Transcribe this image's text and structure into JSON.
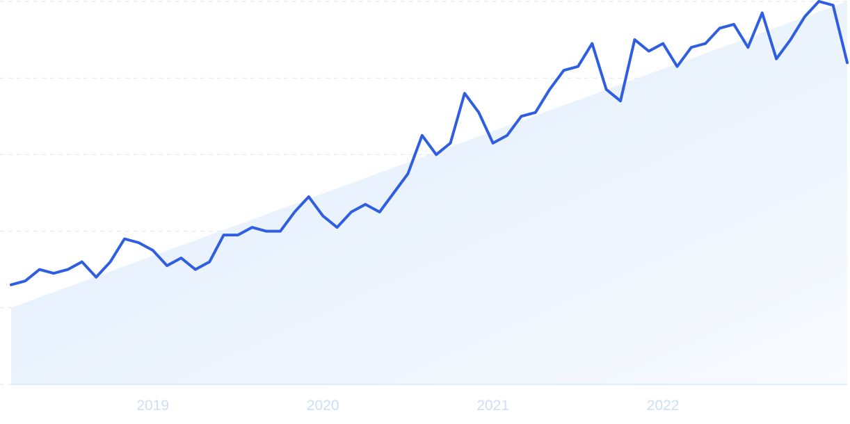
{
  "chart_data": {
    "type": "line",
    "title": "",
    "xlabel": "",
    "ylabel": "",
    "x_ticks": [
      "2019",
      "2020",
      "2021",
      "2022"
    ],
    "grid": true,
    "legend": "none",
    "ylim": [
      0,
      100
    ],
    "colors": {
      "line": "#2f5fe0",
      "trend_fill_start": "#deebfb",
      "trend_fill_end": "#f8fbff",
      "tick": "#cddff6",
      "grid": "#dbe6f3"
    },
    "x": [
      "2018-03",
      "2018-04",
      "2018-05",
      "2018-06",
      "2018-07",
      "2018-08",
      "2018-09",
      "2018-10",
      "2018-11",
      "2018-12",
      "2019-01",
      "2019-02",
      "2019-03",
      "2019-04",
      "2019-05",
      "2019-06",
      "2019-07",
      "2019-08",
      "2019-09",
      "2019-10",
      "2019-11",
      "2019-12",
      "2020-01",
      "2020-02",
      "2020-03",
      "2020-04",
      "2020-05",
      "2020-06",
      "2020-07",
      "2020-08",
      "2020-09",
      "2020-10",
      "2020-11",
      "2020-12",
      "2021-01",
      "2021-02",
      "2021-03",
      "2021-04",
      "2021-05",
      "2021-06",
      "2021-07",
      "2021-08",
      "2021-09",
      "2021-10",
      "2021-11",
      "2021-12",
      "2022-01",
      "2022-02",
      "2022-03",
      "2022-04",
      "2022-05",
      "2022-06",
      "2022-07",
      "2022-08",
      "2022-09",
      "2022-10",
      "2022-11",
      "2022-12",
      "2023-01",
      "2023-02"
    ],
    "series": [
      {
        "values": [
          26,
          27,
          30,
          29,
          30,
          32,
          28,
          32,
          38,
          37,
          35,
          31,
          33,
          30,
          32,
          39,
          39,
          41,
          40,
          40,
          45,
          49,
          44,
          41,
          45,
          47,
          45,
          50,
          55,
          65,
          60,
          63,
          76,
          71,
          63,
          65,
          70,
          71,
          77,
          82,
          83,
          89,
          77,
          74,
          90,
          87,
          89,
          83,
          88,
          89,
          93,
          94,
          88,
          97,
          85,
          90,
          96,
          100,
          99,
          84
        ]
      }
    ],
    "trend": {
      "type": "area",
      "start": 20,
      "end": 100
    }
  }
}
